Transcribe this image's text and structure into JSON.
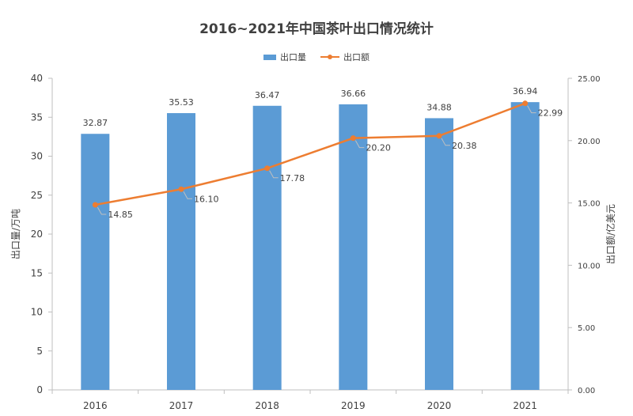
{
  "chart_data": {
    "type": "bar+line",
    "title": "2016~2021年中国茶叶出口情况统计",
    "categories": [
      "2016",
      "2017",
      "2018",
      "2019",
      "2020",
      "2021"
    ],
    "series": [
      {
        "name": "出口量",
        "type": "bar",
        "axis": "left",
        "values": [
          32.87,
          35.53,
          36.47,
          36.66,
          34.88,
          36.94
        ],
        "labels": [
          "32.87",
          "35.53",
          "36.47",
          "36.66",
          "34.88",
          "36.94"
        ]
      },
      {
        "name": "出口额",
        "type": "line",
        "axis": "right",
        "values": [
          14.85,
          16.1,
          17.78,
          20.2,
          20.38,
          22.99
        ],
        "labels": [
          "14.85",
          "16.10",
          "17.78",
          "20.20",
          "20.38",
          "22.99"
        ]
      }
    ],
    "ylabel_left": "出口量/万吨",
    "ylabel_right": "出口额/亿美元",
    "ylim_left": [
      0,
      40
    ],
    "ylim_right": [
      0,
      25
    ],
    "yticks_left": [
      "0",
      "5",
      "10",
      "15",
      "20",
      "25",
      "30",
      "35",
      "40"
    ],
    "yticks_right": [
      "0.00",
      "5.00",
      "10.00",
      "15.00",
      "20.00",
      "25.00"
    ],
    "grid": false,
    "legend_position": "top",
    "colors": {
      "bar": "#5b9bd5",
      "line": "#ed7d31",
      "axis": "#bfbfbf",
      "text": "#404040"
    }
  }
}
